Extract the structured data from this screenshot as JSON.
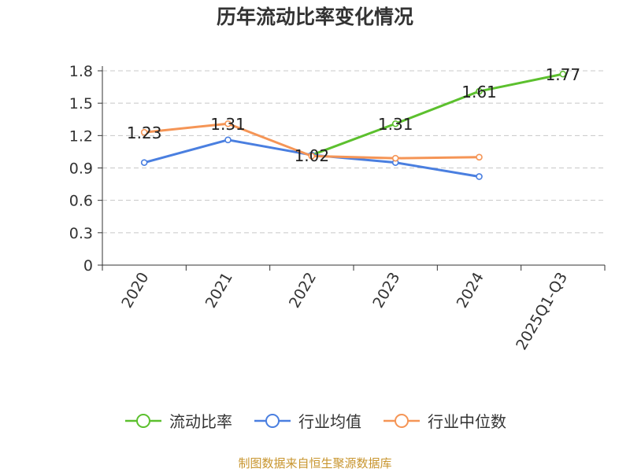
{
  "title": "历年流动比率变化情况",
  "source": "制图数据来自恒生聚源数据库",
  "chart_data": {
    "type": "line",
    "categories": [
      "2020",
      "2021",
      "2022",
      "2023",
      "2024",
      "2025Q1-Q3"
    ],
    "yticks": [
      "0",
      "0.3",
      "0.6",
      "0.9",
      "1.2",
      "1.5",
      "1.8"
    ],
    "ylim": [
      0,
      1.8
    ],
    "grid": true,
    "legend_position": "bottom",
    "series": [
      {
        "name": "流动比率",
        "color": "#5cc02e",
        "values": [
          null,
          null,
          1.02,
          1.31,
          1.61,
          1.77
        ],
        "labels": [
          "",
          "",
          "1.02",
          "1.31",
          "1.61",
          "1.77"
        ]
      },
      {
        "name": "行业均值",
        "color": "#4a7fe0",
        "values": [
          0.95,
          1.16,
          1.02,
          0.95,
          0.82,
          null
        ],
        "labels": []
      },
      {
        "name": "行业中位数",
        "color": "#f59556",
        "values": [
          1.23,
          1.31,
          1.01,
          0.99,
          1.0,
          null
        ],
        "labels": [
          "1.23",
          "1.31",
          "",
          "",
          "",
          ""
        ]
      }
    ]
  }
}
